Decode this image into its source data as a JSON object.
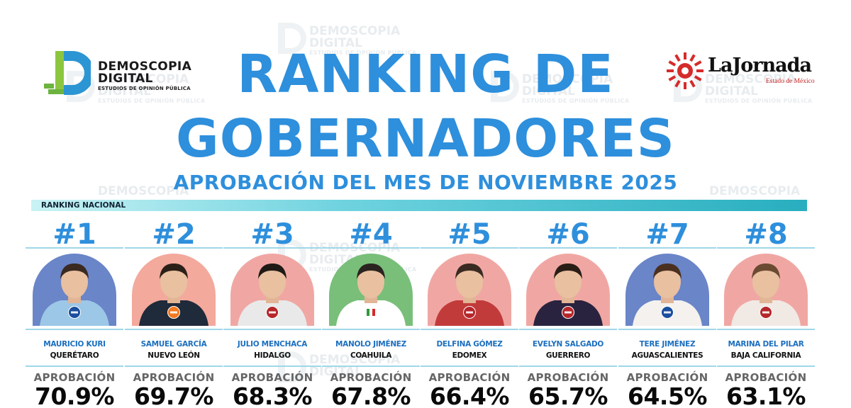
{
  "watermark": {
    "brand": "DEMOSCOPIA",
    "brand2": "DIGITAL",
    "tag": "ESTUDIOS DE OPINIÓN PÚBLICA"
  },
  "logo_left": {
    "name_line1": "DEMOSCOPIA",
    "name_line2": "DIGITAL",
    "tagline": "ESTUDIOS DE OPINIÓN PÚBLICA"
  },
  "logo_right": {
    "brand": "LaJornada",
    "region": "Estado de México"
  },
  "title_line1": "RANKING DE",
  "title_line2": "GOBERNADORES",
  "subtitle": "APROBACIÓN DEL MES DE NOVIEMBRE 2025",
  "section_label": "RANKING NACIONAL",
  "approval_label": "APROBACIÓN",
  "colors": {
    "title_blue": "#2e8fdc",
    "name_blue": "#1c6fbf",
    "pan_bg": "#6a85c8",
    "morena_bg": "#f0a7a3",
    "pri_bg": "#79bf7a",
    "mc_bg": "#f3a99c"
  },
  "governors": [
    {
      "rank": "#1",
      "name": "MAURICIO KURI",
      "state": "QUERÉTARO",
      "approval": "70.9%",
      "approval_value": 70.9,
      "party": "PAN",
      "party_icon": "pan-logo-icon"
    },
    {
      "rank": "#2",
      "name": "SAMUEL GARCÍA",
      "state": "NUEVO LEÓN",
      "approval": "69.7%",
      "approval_value": 69.7,
      "party": "MC",
      "party_icon": "mc-logo-icon"
    },
    {
      "rank": "#3",
      "name": "JULIO MENCHACA",
      "state": "HIDALGO",
      "approval": "68.3%",
      "approval_value": 68.3,
      "party": "MORENA",
      "party_icon": "morena-logo-icon"
    },
    {
      "rank": "#4",
      "name": "MANOLO JIMÉNEZ",
      "state": "COAHUILA",
      "approval": "67.8%",
      "approval_value": 67.8,
      "party": "PRI",
      "party_icon": "pri-logo-icon"
    },
    {
      "rank": "#5",
      "name": "DELFINA GÓMEZ",
      "state": "EDOMEX",
      "approval": "66.4%",
      "approval_value": 66.4,
      "party": "MORENA",
      "party_icon": "morena-logo-icon"
    },
    {
      "rank": "#6",
      "name": "EVELYN SALGADO",
      "state": "GUERRERO",
      "approval": "65.7%",
      "approval_value": 65.7,
      "party": "MORENA",
      "party_icon": "morena-logo-icon"
    },
    {
      "rank": "#7",
      "name": "TERE JIMÉNEZ",
      "state": "AGUASCALIENTES",
      "approval": "64.5%",
      "approval_value": 64.5,
      "party": "PAN",
      "party_icon": "pan-logo-icon"
    },
    {
      "rank": "#8",
      "name": "MARINA DEL PILAR",
      "state": "BAJA CALIFORNIA",
      "approval": "63.1%",
      "approval_value": 63.1,
      "party": "MORENA",
      "party_icon": "morena-logo-icon"
    }
  ]
}
